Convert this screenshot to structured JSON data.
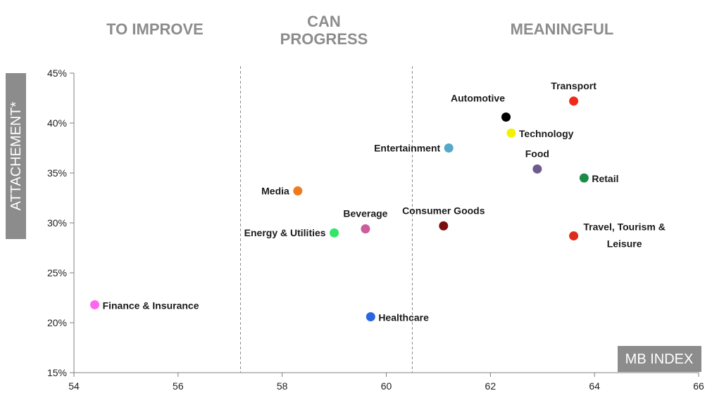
{
  "chart_data": {
    "type": "scatter",
    "title": "",
    "xlabel": "MB INDEX",
    "ylabel": "ATTACHEMENT*",
    "xlim": [
      54,
      66
    ],
    "ylim": [
      15,
      45
    ],
    "x_ticks": [
      "54",
      "56",
      "58",
      "60",
      "62",
      "64",
      "66"
    ],
    "y_ticks": [
      "15%",
      "20%",
      "25%",
      "30%",
      "35%",
      "40%",
      "45%"
    ],
    "x_tick_values": [
      54,
      56,
      58,
      60,
      62,
      64,
      66
    ],
    "y_tick_values": [
      15,
      20,
      25,
      30,
      35,
      40,
      45
    ],
    "grid": false,
    "zone_dividers": [
      57.2,
      60.5
    ],
    "zones": [
      "TO IMPROVE",
      "CAN PROGRESS",
      "MEANINGFUL"
    ],
    "zone_titles": {
      "to_improve": "TO IMPROVE",
      "can_progress_line1": "CAN",
      "can_progress_line2": "PROGRESS",
      "meaningful": "MEANINGFUL"
    },
    "points": [
      {
        "label": "Finance & Insurance",
        "x": 54.4,
        "y": 21.8,
        "color": "#ff66ee",
        "label_pos": "right"
      },
      {
        "label": "Media",
        "x": 58.3,
        "y": 33.2,
        "color": "#f07a1e",
        "label_pos": "left"
      },
      {
        "label": "Energy & Utilities",
        "x": 59.0,
        "y": 29.0,
        "color": "#33e666",
        "label_pos": "left"
      },
      {
        "label": "Beverage",
        "x": 59.6,
        "y": 29.4,
        "color": "#cc5c9e",
        "label_pos": "above"
      },
      {
        "label": "Healthcare",
        "x": 59.7,
        "y": 20.6,
        "color": "#2966e0",
        "label_pos": "right"
      },
      {
        "label": "Consumer Goods",
        "x": 61.1,
        "y": 29.7,
        "color": "#7a0f0f",
        "label_pos": "above"
      },
      {
        "label": "Entertainment",
        "x": 61.2,
        "y": 37.5,
        "color": "#55a8c8",
        "label_pos": "left"
      },
      {
        "label": "Automotive",
        "x": 62.3,
        "y": 40.6,
        "color": "#000000",
        "label_pos": "above-left"
      },
      {
        "label": "Technology",
        "x": 62.4,
        "y": 39.0,
        "color": "#f2f200",
        "label_pos": "right"
      },
      {
        "label": "Food",
        "x": 62.9,
        "y": 35.4,
        "color": "#6e5a8e",
        "label_pos": "above"
      },
      {
        "label": "Transport",
        "x": 63.6,
        "y": 42.2,
        "color": "#f02a1a",
        "label_pos": "above"
      },
      {
        "label": "Retail",
        "x": 63.8,
        "y": 34.5,
        "color": "#1a8c45",
        "label_pos": "right"
      },
      {
        "label": "Travel, Tourism & Leisure",
        "label_line1": "Travel, Tourism &",
        "label_line2": "Leisure",
        "x": 63.6,
        "y": 28.7,
        "color": "#e02a1a",
        "label_pos": "right-two-line"
      }
    ]
  }
}
